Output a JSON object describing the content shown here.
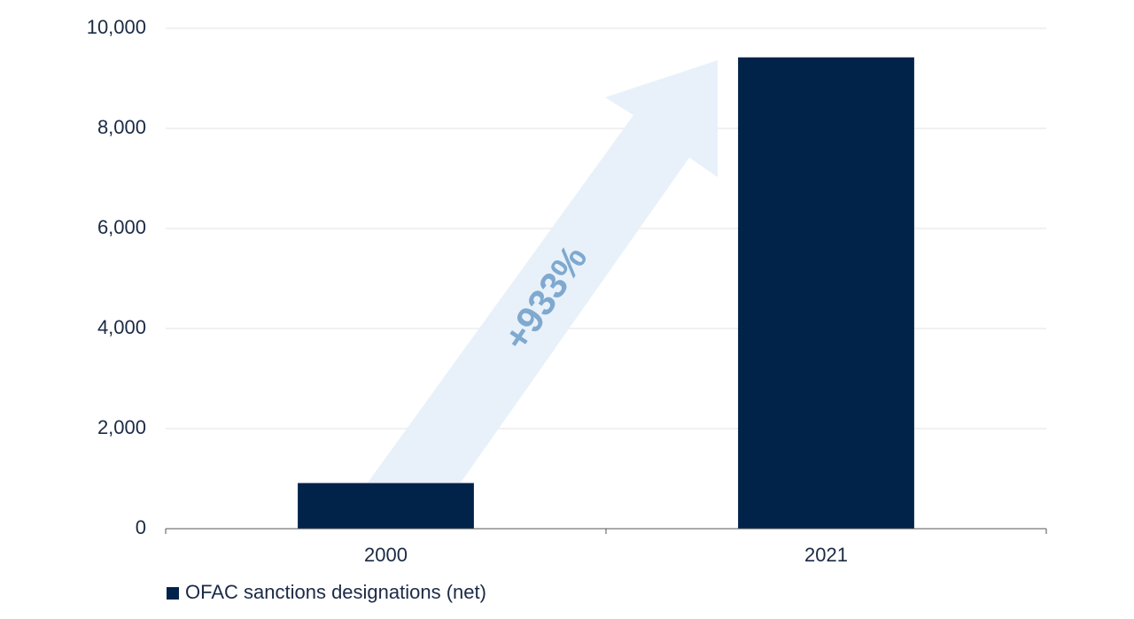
{
  "chart_data": {
    "type": "bar",
    "categories": [
      "2000",
      "2021"
    ],
    "series": [
      {
        "name": "OFAC sanctions designations (net)",
        "color": "#012249",
        "values": [
          912,
          9420
        ]
      }
    ],
    "annotation": "+933%",
    "ylim": [
      0,
      10000
    ],
    "yticks": [
      0,
      {
        "value": 2000,
        "label": "2,000"
      },
      {
        "value": 4000,
        "label": "4,000"
      },
      {
        "value": 6000,
        "label": "6,000"
      },
      {
        "value": 8000,
        "label": "8,000"
      },
      {
        "value": 10000,
        "label": "10,000"
      }
    ],
    "grid": true
  }
}
